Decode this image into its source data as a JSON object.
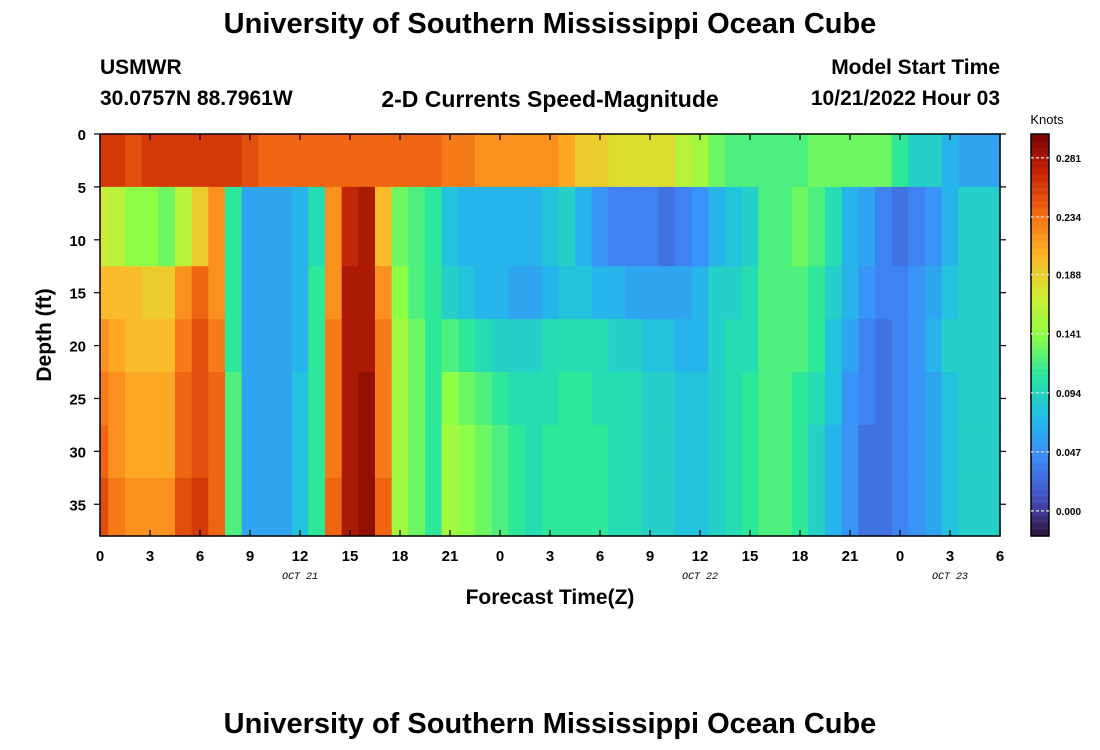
{
  "page_title": "University of Southern Mississippi Ocean Cube",
  "footer_title": "University of Southern Mississippi Ocean Cube",
  "station": {
    "name": "USMWR",
    "coords": "30.0757N  88.7961W"
  },
  "plot_title": "2-D Currents Speed-Magnitude",
  "model_start": {
    "label": "Model Start Time",
    "value": "10/21/2022 Hour 03"
  },
  "colorbar": {
    "units": "Knots",
    "ticks": [
      "0.000",
      "0.047",
      "0.094",
      "0.141",
      "0.188",
      "0.234",
      "0.281"
    ],
    "range": [
      -0.02,
      0.3
    ]
  },
  "chart_data": {
    "type": "heatmap",
    "xlabel": "Forecast Time(Z)",
    "ylabel": "Depth (ft)",
    "x_ticks": [
      "0",
      "3",
      "6",
      "9",
      "12",
      "15",
      "18",
      "21",
      "0",
      "3",
      "6",
      "9",
      "12",
      "15",
      "18",
      "21",
      "0",
      "3",
      "6"
    ],
    "y_ticks": [
      "0",
      "5",
      "10",
      "15",
      "20",
      "25",
      "30",
      "35"
    ],
    "date_labels": [
      {
        "text": "OCT 21",
        "hour": 12
      },
      {
        "text": "OCT 22",
        "hour": 36
      },
      {
        "text": "OCT 23",
        "hour": 51
      }
    ],
    "xlim_hours": [
      0,
      54
    ],
    "ylim_ft": [
      0,
      38
    ],
    "depths_ft": [
      0,
      10,
      15,
      20,
      25,
      30,
      35,
      38
    ],
    "hours": [
      0,
      1,
      2,
      3,
      4,
      5,
      6,
      7,
      8,
      9,
      10,
      11,
      12,
      13,
      14,
      15,
      16,
      17,
      18,
      19,
      20,
      21,
      22,
      23,
      24,
      25,
      26,
      27,
      28,
      29,
      30,
      31,
      32,
      33,
      34,
      35,
      36,
      37,
      38,
      39,
      40,
      41,
      42,
      43,
      44,
      45,
      46,
      47,
      48,
      49,
      50,
      51,
      52,
      53,
      54
    ],
    "speed_knots": [
      [
        0.26,
        0.26,
        0.25,
        0.26,
        0.26,
        0.26,
        0.26,
        0.26,
        0.26,
        0.25,
        0.24,
        0.24,
        0.24,
        0.24,
        0.24,
        0.24,
        0.24,
        0.24,
        0.24,
        0.24,
        0.24,
        0.23,
        0.23,
        0.22,
        0.22,
        0.22,
        0.22,
        0.22,
        0.21,
        0.19,
        0.19,
        0.18,
        0.18,
        0.18,
        0.18,
        0.16,
        0.15,
        0.13,
        0.12,
        0.12,
        0.12,
        0.12,
        0.12,
        0.13,
        0.13,
        0.13,
        0.13,
        0.13,
        0.11,
        0.09,
        0.09,
        0.07,
        0.06,
        0.06,
        0.06
      ],
      [
        0.17,
        0.16,
        0.14,
        0.14,
        0.13,
        0.16,
        0.19,
        0.22,
        0.11,
        0.06,
        0.06,
        0.06,
        0.07,
        0.1,
        0.22,
        0.27,
        0.28,
        0.2,
        0.13,
        0.12,
        0.11,
        0.08,
        0.07,
        0.07,
        0.07,
        0.07,
        0.07,
        0.08,
        0.09,
        0.07,
        0.05,
        0.04,
        0.04,
        0.04,
        0.03,
        0.04,
        0.05,
        0.07,
        0.08,
        0.09,
        0.12,
        0.12,
        0.13,
        0.12,
        0.1,
        0.07,
        0.06,
        0.04,
        0.03,
        0.04,
        0.05,
        0.07,
        0.09,
        0.09,
        0.09
      ],
      [
        0.2,
        0.2,
        0.2,
        0.19,
        0.19,
        0.22,
        0.24,
        0.22,
        0.11,
        0.06,
        0.06,
        0.06,
        0.07,
        0.11,
        0.22,
        0.28,
        0.28,
        0.22,
        0.14,
        0.12,
        0.11,
        0.09,
        0.08,
        0.07,
        0.07,
        0.06,
        0.06,
        0.07,
        0.08,
        0.08,
        0.07,
        0.07,
        0.06,
        0.06,
        0.06,
        0.06,
        0.07,
        0.09,
        0.09,
        0.1,
        0.12,
        0.12,
        0.12,
        0.11,
        0.09,
        0.07,
        0.05,
        0.04,
        0.04,
        0.05,
        0.06,
        0.08,
        0.09,
        0.09,
        0.09
      ],
      [
        0.22,
        0.21,
        0.2,
        0.2,
        0.2,
        0.23,
        0.25,
        0.23,
        0.11,
        0.06,
        0.06,
        0.06,
        0.07,
        0.11,
        0.23,
        0.28,
        0.28,
        0.23,
        0.15,
        0.13,
        0.11,
        0.12,
        0.11,
        0.1,
        0.09,
        0.09,
        0.09,
        0.1,
        0.1,
        0.1,
        0.1,
        0.09,
        0.09,
        0.08,
        0.08,
        0.07,
        0.07,
        0.09,
        0.1,
        0.1,
        0.12,
        0.12,
        0.12,
        0.11,
        0.08,
        0.06,
        0.04,
        0.03,
        0.04,
        0.05,
        0.07,
        0.09,
        0.09,
        0.09,
        0.09
      ],
      [
        0.23,
        0.22,
        0.21,
        0.21,
        0.21,
        0.24,
        0.25,
        0.24,
        0.12,
        0.06,
        0.06,
        0.06,
        0.08,
        0.11,
        0.23,
        0.28,
        0.29,
        0.23,
        0.15,
        0.13,
        0.11,
        0.14,
        0.13,
        0.12,
        0.11,
        0.1,
        0.1,
        0.1,
        0.11,
        0.11,
        0.1,
        0.1,
        0.1,
        0.09,
        0.09,
        0.08,
        0.08,
        0.09,
        0.1,
        0.11,
        0.12,
        0.12,
        0.11,
        0.1,
        0.08,
        0.05,
        0.04,
        0.03,
        0.04,
        0.05,
        0.06,
        0.08,
        0.09,
        0.09,
        0.09
      ],
      [
        0.24,
        0.22,
        0.21,
        0.21,
        0.21,
        0.24,
        0.25,
        0.24,
        0.12,
        0.06,
        0.06,
        0.06,
        0.08,
        0.11,
        0.23,
        0.28,
        0.29,
        0.23,
        0.15,
        0.13,
        0.11,
        0.15,
        0.14,
        0.13,
        0.12,
        0.11,
        0.1,
        0.11,
        0.11,
        0.11,
        0.11,
        0.1,
        0.1,
        0.09,
        0.09,
        0.08,
        0.08,
        0.09,
        0.1,
        0.11,
        0.12,
        0.12,
        0.11,
        0.09,
        0.07,
        0.05,
        0.03,
        0.03,
        0.04,
        0.05,
        0.06,
        0.08,
        0.09,
        0.09,
        0.09
      ],
      [
        0.25,
        0.23,
        0.22,
        0.22,
        0.22,
        0.25,
        0.26,
        0.24,
        0.12,
        0.06,
        0.06,
        0.06,
        0.08,
        0.11,
        0.24,
        0.28,
        0.29,
        0.24,
        0.15,
        0.13,
        0.11,
        0.15,
        0.14,
        0.13,
        0.12,
        0.11,
        0.1,
        0.11,
        0.11,
        0.11,
        0.11,
        0.1,
        0.1,
        0.09,
        0.09,
        0.08,
        0.08,
        0.09,
        0.1,
        0.11,
        0.12,
        0.12,
        0.11,
        0.09,
        0.07,
        0.05,
        0.03,
        0.03,
        0.04,
        0.05,
        0.06,
        0.08,
        0.09,
        0.09,
        0.09
      ],
      [
        0.25,
        0.23,
        0.22,
        0.22,
        0.22,
        0.25,
        0.26,
        0.24,
        0.12,
        0.06,
        0.06,
        0.06,
        0.08,
        0.11,
        0.24,
        0.28,
        0.29,
        0.24,
        0.15,
        0.13,
        0.11,
        0.15,
        0.14,
        0.13,
        0.12,
        0.11,
        0.1,
        0.11,
        0.11,
        0.11,
        0.11,
        0.1,
        0.1,
        0.09,
        0.09,
        0.08,
        0.08,
        0.09,
        0.1,
        0.11,
        0.12,
        0.12,
        0.11,
        0.09,
        0.07,
        0.05,
        0.03,
        0.03,
        0.04,
        0.05,
        0.06,
        0.08,
        0.09,
        0.09,
        0.09
      ]
    ]
  }
}
